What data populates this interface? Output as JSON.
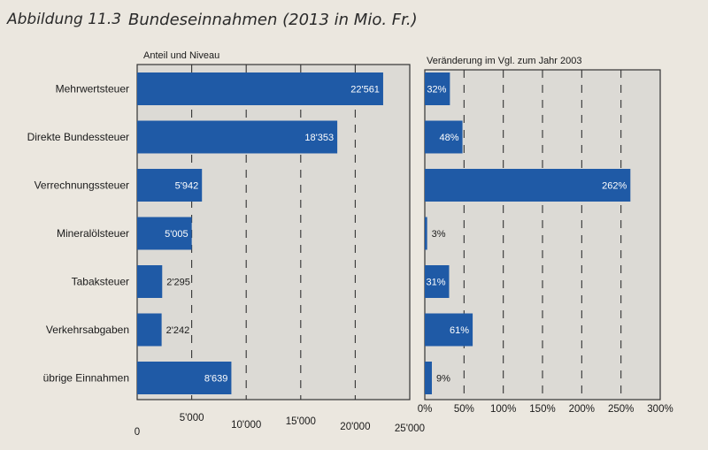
{
  "figure": {
    "label": "Abbildung 11.3",
    "title": "Bundeseinnahmen (2013 in Mio. Fr.)"
  },
  "colors": {
    "bar": "#1f5aa6",
    "panel": "#dcdad5",
    "grid": "#333333"
  },
  "chart_data": [
    {
      "type": "bar",
      "orientation": "horizontal",
      "subtitle": "Anteil und Niveau",
      "categories": [
        "Mehrwertsteuer",
        "Direkte Bundessteuer",
        "Verrechnungssteuer",
        "Mineralölsteuer",
        "Tabaksteuer",
        "Verkehrsabgaben",
        "übrige Einnahmen"
      ],
      "values": [
        22561,
        18353,
        5942,
        5005,
        2295,
        2242,
        8639
      ],
      "value_labels": [
        "22'561",
        "18'353",
        "5'942",
        "5'005",
        "2'295",
        "2'242",
        "8'639"
      ],
      "xlim": [
        0,
        25000
      ],
      "ticks": [
        0,
        5000,
        10000,
        15000,
        20000,
        25000
      ],
      "tick_labels": [
        "0",
        "5'000",
        "10'000",
        "15'000",
        "20'000",
        "25'000"
      ],
      "grid": "dashed vertical"
    },
    {
      "type": "bar",
      "orientation": "horizontal",
      "subtitle": "Veränderung im Vgl. zum Jahr 2003",
      "categories": [
        "Mehrwertsteuer",
        "Direkte Bundessteuer",
        "Verrechnungssteuer",
        "Mineralölsteuer",
        "Tabaksteuer",
        "Verkehrsabgaben",
        "übrige Einnahmen"
      ],
      "values": [
        32,
        48,
        262,
        3,
        31,
        61,
        9
      ],
      "value_labels": [
        "32%",
        "48%",
        "262%",
        "3%",
        "31%",
        "61%",
        "9%"
      ],
      "xlim": [
        0,
        300
      ],
      "ticks": [
        0,
        50,
        100,
        150,
        200,
        250,
        300
      ],
      "tick_labels": [
        "0%",
        "50%",
        "100%",
        "150%",
        "200%",
        "250%",
        "300%"
      ],
      "grid": "dashed vertical"
    }
  ]
}
